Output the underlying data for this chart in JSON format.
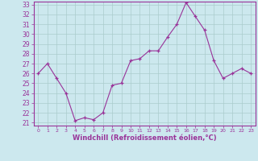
{
  "x": [
    0,
    1,
    2,
    3,
    4,
    5,
    6,
    7,
    8,
    9,
    10,
    11,
    12,
    13,
    14,
    15,
    16,
    17,
    18,
    19,
    20,
    21,
    22,
    23
  ],
  "y": [
    26.0,
    27.0,
    25.5,
    24.0,
    21.2,
    21.5,
    21.3,
    22.0,
    24.8,
    25.0,
    27.3,
    27.5,
    28.3,
    28.3,
    29.7,
    31.0,
    33.2,
    31.8,
    30.4,
    27.3,
    25.5,
    26.0,
    26.5,
    26.0
  ],
  "xlabel": "Windchill (Refroidissement éolien,°C)",
  "ylim_min": 21,
  "ylim_max": 33,
  "yticks": [
    21,
    22,
    23,
    24,
    25,
    26,
    27,
    28,
    29,
    30,
    31,
    32,
    33
  ],
  "xticks": [
    0,
    1,
    2,
    3,
    4,
    5,
    6,
    7,
    8,
    9,
    10,
    11,
    12,
    13,
    14,
    15,
    16,
    17,
    18,
    19,
    20,
    21,
    22,
    23
  ],
  "line_color": "#993399",
  "marker": "+",
  "bg_color": "#cce8ee",
  "grid_color": "#aacccc",
  "spine_color": "#993399"
}
